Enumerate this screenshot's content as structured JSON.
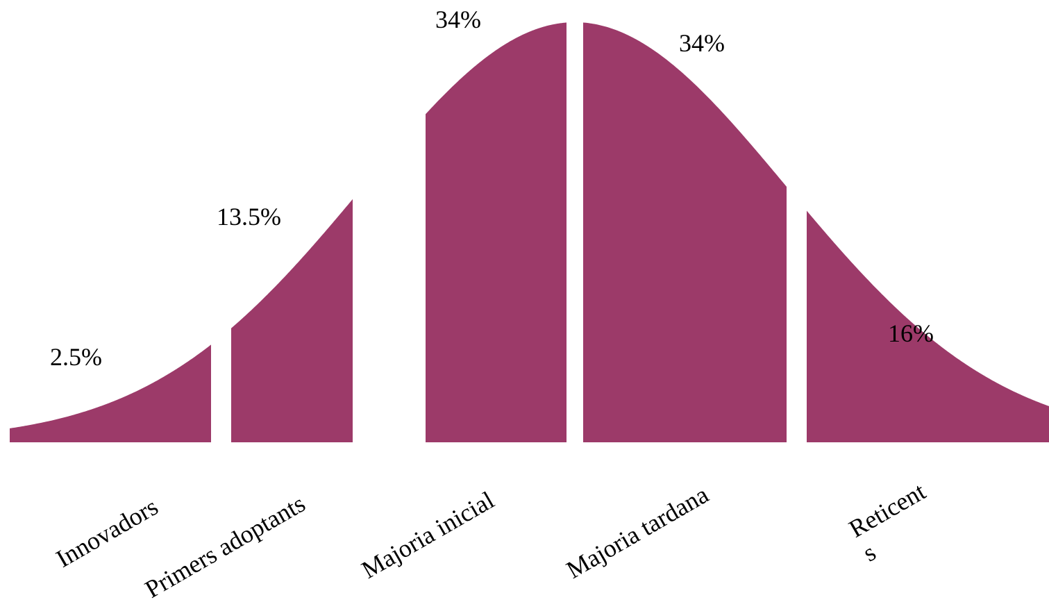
{
  "chart_data": {
    "type": "area",
    "title": "",
    "xlabel": "",
    "ylabel": "",
    "categories": [
      "Innovadors",
      "Primers adoptants",
      "Majoria inicial",
      "Majoria tardana",
      "Reticent s"
    ],
    "category_label_lines": [
      [
        "Innovadors"
      ],
      [
        "Primers adoptants"
      ],
      [
        "Majoria inicial"
      ],
      [
        "Majoria tardana"
      ],
      [
        "Reticent",
        "s"
      ]
    ],
    "values": [
      2.5,
      13.5,
      34,
      34,
      16
    ],
    "value_labels": [
      "2.5%",
      "13.5%",
      "34%",
      "34%",
      "16%"
    ],
    "color": "#9c3a69",
    "grid": false,
    "legend": "none"
  }
}
